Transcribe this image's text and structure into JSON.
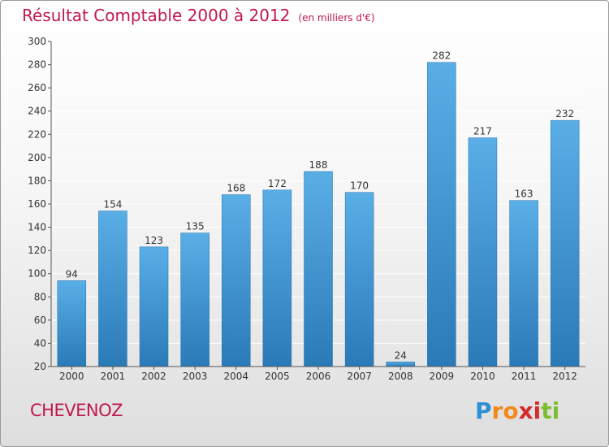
{
  "chart_data": {
    "type": "bar",
    "title": "Résultat Comptable 2000 à 2012",
    "unit_note": "(en milliers d'€)",
    "categories": [
      "2000",
      "2001",
      "2002",
      "2003",
      "2004",
      "2005",
      "2006",
      "2007",
      "2008",
      "2009",
      "2010",
      "2011",
      "2012"
    ],
    "values": [
      94,
      154,
      123,
      135,
      168,
      172,
      188,
      170,
      24,
      282,
      217,
      163,
      232
    ],
    "ylim": [
      20,
      300
    ],
    "yticks": [
      20,
      40,
      60,
      80,
      100,
      120,
      140,
      160,
      180,
      200,
      220,
      240,
      260,
      280,
      300
    ],
    "xlabel": "",
    "ylabel": "",
    "grid": true,
    "bar_color_top": "#5aaee6",
    "bar_color_bottom": "#2a7ab8"
  },
  "place_name": "CHEVENOZ",
  "logo": {
    "letters": [
      "P",
      "r",
      "o",
      "x",
      "i",
      "t",
      "i"
    ],
    "colors": [
      "#2d8fd4",
      "#f08a1c",
      "#f08a1c",
      "#d42a2a",
      "#d42a2a",
      "#7cbf2e",
      "#7cbf2e"
    ]
  },
  "colors": {
    "accent": "#c0184c",
    "axis": "#555555",
    "grid": "#ffffff"
  }
}
